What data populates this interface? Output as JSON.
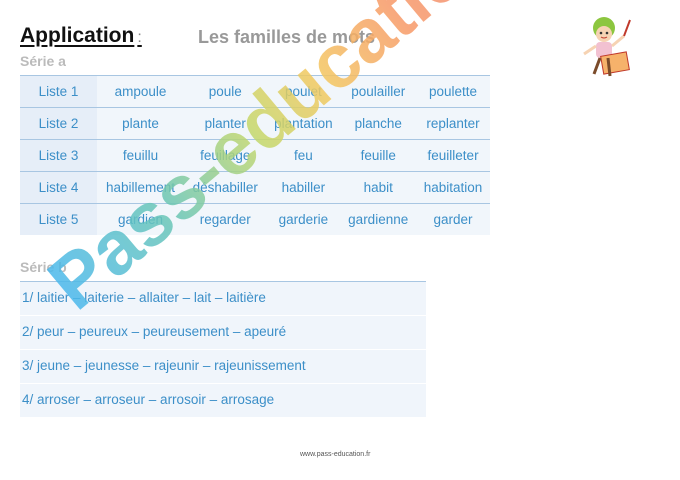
{
  "header": {
    "title": "Application",
    "colon": ":",
    "subtitle": "Les familles de mots"
  },
  "series_a": {
    "label": "Série a",
    "rows": [
      {
        "label": "Liste 1",
        "words": [
          "ampoule",
          "poule",
          "poulet",
          "poulailler",
          "poulette"
        ]
      },
      {
        "label": "Liste 2",
        "words": [
          "plante",
          "planter",
          "plantation",
          "planche",
          "replanter"
        ]
      },
      {
        "label": "Liste 3",
        "words": [
          "feuillu",
          "feuillage",
          "feu",
          "feuille",
          "feuilleter"
        ]
      },
      {
        "label": "Liste 4",
        "words": [
          "habillement",
          "déshabiller",
          "habiller",
          "habit",
          "habitation"
        ]
      },
      {
        "label": "Liste 5",
        "words": [
          "gardien",
          "regarder",
          "garderie",
          "gardienne",
          "garder"
        ]
      }
    ]
  },
  "series_b": {
    "label": "Série b",
    "lines": [
      "1/ laitier  –   laiterie  –   allaiter  –   lait  –  laitière",
      "2/ peur   –  peureux  –  peureusement  –  apeuré",
      "3/ jeune  –  jeunesse  –  rajeunir  –   rajeunissement",
      "4/ arroser – arroseur – arrosoir – arrosage"
    ]
  },
  "watermark": "Pass-education",
  "footer": "www.pass-education.fr",
  "colors": {
    "accent": "#3c8fc8",
    "row_fill": "#f1f6fb",
    "label_fill": "#e6eef8"
  }
}
